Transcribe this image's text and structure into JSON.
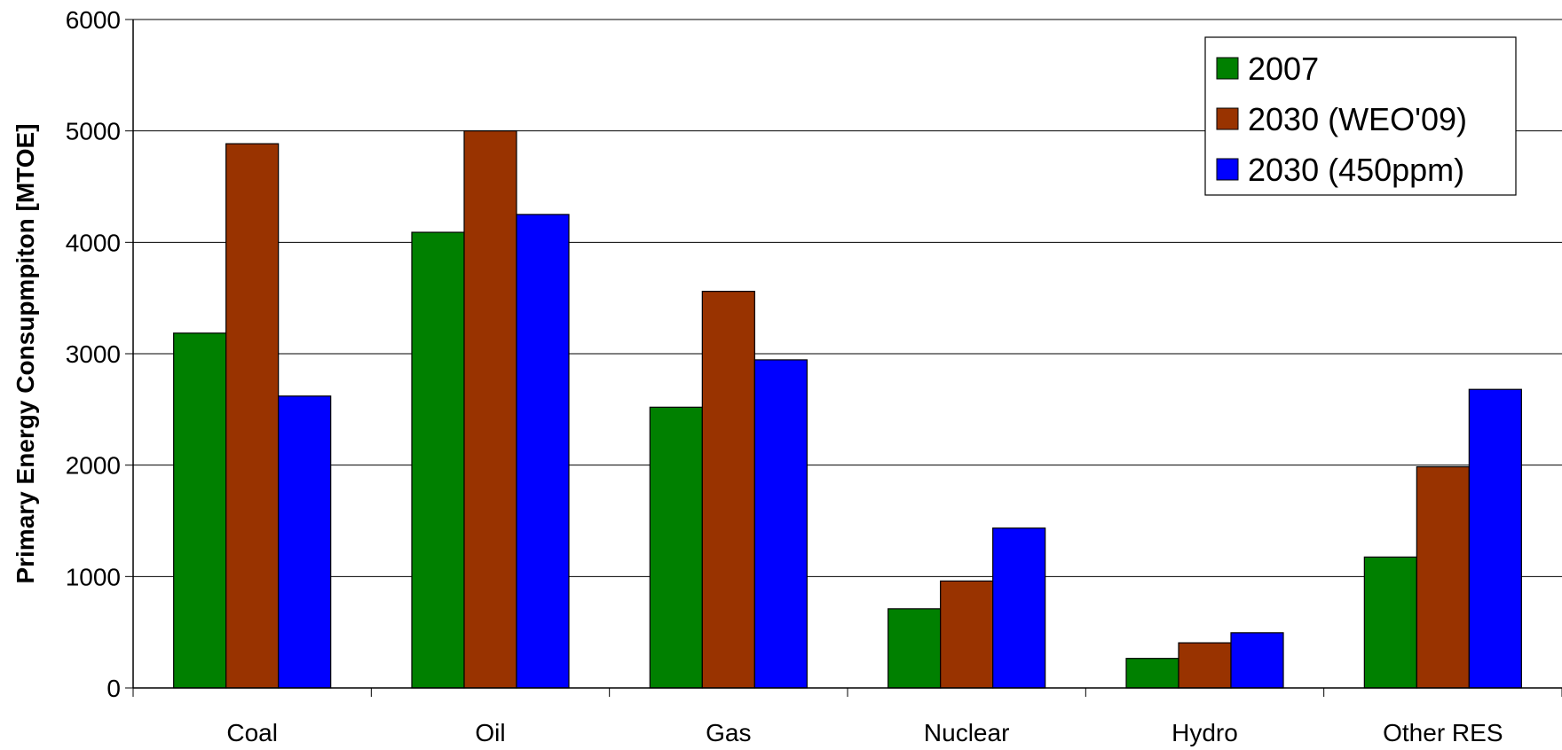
{
  "chart_data": {
    "type": "bar",
    "title": "",
    "xlabel": "",
    "ylabel": "Primary Energy Consupmpiton [MTOE]",
    "ylim": [
      0,
      6000
    ],
    "yticks": [
      0,
      1000,
      2000,
      3000,
      4000,
      5000,
      6000
    ],
    "grid": "horizontal",
    "legend_position": "top-right",
    "categories": [
      "Coal",
      "Oil",
      "Gas",
      "Nuclear",
      "Hydro",
      "Other RES"
    ],
    "series": [
      {
        "name": "2007",
        "color": "#008000",
        "values": [
          3185,
          4090,
          2520,
          710,
          265,
          1175
        ]
      },
      {
        "name": "2030 (WEO'09)",
        "color": "#993300",
        "values": [
          4885,
          5000,
          3560,
          960,
          405,
          1985
        ]
      },
      {
        "name": "2030 (450ppm)",
        "color": "#0000ff",
        "values": [
          2620,
          4250,
          2945,
          1435,
          495,
          2680
        ]
      }
    ]
  }
}
